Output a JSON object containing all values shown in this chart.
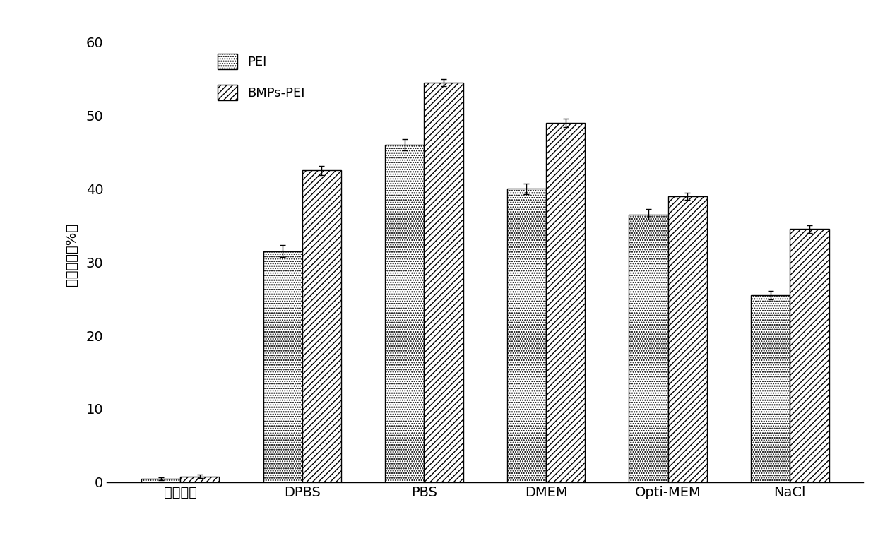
{
  "categories": [
    "阴性对照",
    "DPBS",
    "PBS",
    "DMEM",
    "Opti-MEM",
    "NaCl"
  ],
  "pei_values": [
    0.5,
    31.5,
    46.0,
    40.0,
    36.5,
    25.5
  ],
  "bmps_pei_values": [
    0.8,
    42.5,
    54.5,
    49.0,
    39.0,
    34.5
  ],
  "pei_errors": [
    0.2,
    0.8,
    0.8,
    0.7,
    0.7,
    0.6
  ],
  "bmps_pei_errors": [
    0.2,
    0.6,
    0.5,
    0.6,
    0.5,
    0.5
  ],
  "ylabel": "转染效率（%）",
  "ylim": [
    0,
    62
  ],
  "yticks": [
    0,
    10,
    20,
    30,
    40,
    50,
    60
  ],
  "legend_pei": "PEI",
  "legend_bmps_pei": "BMPs-PEI",
  "bar_width": 0.32,
  "background_color": "white",
  "figsize": [
    12.6,
    7.76
  ],
  "dpi": 100
}
